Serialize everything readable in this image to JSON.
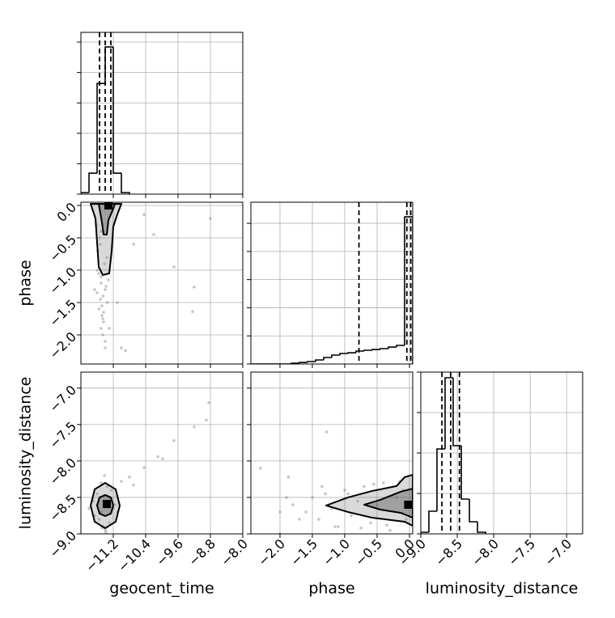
{
  "chart_data": {
    "type": "corner",
    "grid": true,
    "hist_color": "#000000",
    "point_color": "#808080",
    "contour_color": "#000000",
    "parameters": [
      {
        "label": "geocent_time",
        "lim": [
          -12.0,
          -8.0
        ],
        "ticks": [
          {
            "value": -11.2,
            "label": "−11.2"
          },
          {
            "value": -10.4,
            "label": "−10.4"
          },
          {
            "value": -9.6,
            "label": "−9.6"
          },
          {
            "value": -8.8,
            "label": "−8.8"
          },
          {
            "value": -8.0,
            "label": "−8.0"
          }
        ],
        "hist": {
          "bins": [
            -12.0,
            -11.8,
            -11.6,
            -11.4,
            -11.2,
            -11.0,
            -10.8
          ],
          "counts": [
            50,
            690,
            3640,
            4840,
            690,
            50
          ],
          "ylim": [
            0,
            5320
          ],
          "yticks": [
            0,
            1000,
            2000,
            3000,
            4000,
            5000
          ],
          "quantiles": [
            -11.54,
            -11.4,
            -11.26
          ]
        },
        "joint": []
      },
      {
        "label": "phase",
        "lim": [
          -2.45,
          0.05
        ],
        "ticks": [
          {
            "value": -2.0,
            "label": "−2.0"
          },
          {
            "value": -1.5,
            "label": "−1.5"
          },
          {
            "value": -1.0,
            "label": "−1.0"
          },
          {
            "value": -0.5,
            "label": "−0.5"
          },
          {
            "value": 0.0,
            "label": "0.0"
          }
        ],
        "hist": {
          "bins": [
            -2.45,
            -2.325,
            -2.2,
            -2.075,
            -1.95,
            -1.825,
            -1.7,
            -1.575,
            -1.45,
            -1.325,
            -1.2,
            -1.075,
            -0.95,
            -0.825,
            -0.7,
            -0.575,
            -0.45,
            -0.325,
            -0.2,
            -0.075,
            0.05
          ],
          "counts": [
            0,
            0,
            0,
            0,
            0,
            29,
            57,
            86,
            144,
            230,
            316,
            374,
            402,
            460,
            489,
            517,
            546,
            603,
            661,
            5230
          ],
          "ylim": [
            0,
            5750
          ],
          "yticks": [
            0,
            1000,
            2000,
            3000,
            4000,
            5000
          ],
          "quantiles": [
            -0.78,
            -0.04,
            0.02
          ]
        },
        "joint": [
          {
            "x": [
              -11.5,
              -11.4,
              -11.6,
              -11.45,
              -11.35,
              -11.55,
              -11.5,
              -11.42,
              -11.38,
              -11.6,
              -11.48,
              -11.52,
              -11.44,
              -11.36,
              -11.58,
              -11.5,
              -11.46,
              -11.4,
              -11.54,
              -11.32,
              -11.62,
              -11.48,
              -11.56,
              -11.44,
              -11.5,
              -11.4,
              -11.66,
              -11.3,
              -11.52,
              -11.46,
              -10.44,
              -9.7,
              -9.2,
              -10.2,
              -10.9,
              -8.8,
              -9.24,
              -11.1,
              -11.0,
              -10.7
            ],
            "y": [
              -1.2,
              -1.3,
              -1.0,
              -1.4,
              -1.5,
              -1.6,
              -1.1,
              -0.9,
              -1.25,
              -1.35,
              -1.7,
              -1.45,
              -1.8,
              -0.8,
              -0.7,
              -1.9,
              -2.0,
              -2.1,
              -0.5,
              -1.15,
              -0.3,
              -1.55,
              -1.05,
              -1.65,
              -0.4,
              -2.2,
              -1.3,
              -1.9,
              -0.6,
              -1.75,
              -0.14,
              -0.95,
              -1.26,
              -0.45,
              -2.24,
              -0.2,
              -1.64,
              -1.5,
              -2.2,
              -0.6
            ],
            "contours": [
              {
                "x": [
                  -11.76,
                  -11.64,
                  -11.6,
                  -11.56,
                  -11.46,
                  -11.3,
                  -11.24,
                  -11.2,
                  -11.1,
                  -11.0
                ],
                "y": [
                  0.025,
                  -0.2,
                  -0.575,
                  -0.95,
                  -1.075,
                  -1.05,
                  -0.7,
                  -0.325,
                  -0.1375,
                  0.025
                ]
              },
              {
                "x": [
                  -11.56,
                  -11.48,
                  -11.44,
                  -11.36,
                  -11.32,
                  -11.2,
                  -11.16
                ],
                "y": [
                  0.025,
                  -0.2625,
                  -0.45,
                  -0.45,
                  -0.225,
                  -0.05,
                  0.025
                ]
              }
            ],
            "peak": {
              "x": -11.32,
              "y": 0.0
            }
          }
        ]
      },
      {
        "label": "luminosity_distance",
        "lim": [
          -9.0,
          -6.78
        ],
        "ticks": [
          {
            "value": -9.0,
            "label": "−9.0"
          },
          {
            "value": -8.5,
            "label": "−8.5"
          },
          {
            "value": -8.0,
            "label": "−8.0"
          },
          {
            "value": -7.5,
            "label": "−7.5"
          },
          {
            "value": -7.0,
            "label": "−7.0"
          }
        ],
        "hist": {
          "bins": [
            -9.0,
            -8.889,
            -8.778,
            -8.667,
            -8.556,
            -8.444,
            -8.333,
            -8.222,
            -8.111
          ],
          "counts": [
            40,
            560,
            2100,
            3860,
            2180,
            860,
            300,
            40
          ],
          "ylim": [
            0,
            4000
          ],
          "yticks": [
            0,
            1000,
            2000,
            3000,
            4000
          ],
          "quantiles": [
            -8.71,
            -8.59,
            -8.47
          ]
        },
        "joint": [
          {
            "x": [
              -11.6,
              -11.5,
              -11.3,
              -11.2,
              -11.7,
              -11.45,
              -11.35,
              -11.55,
              -11.25,
              -11.4,
              -11.65,
              -11.15,
              -11.5,
              -11.3,
              -11.6,
              -11.42,
              -11.38,
              -11.8,
              -11.1,
              -11.48,
              -11.0,
              -10.8,
              -10.44,
              -10.1,
              -9.7,
              -9.2,
              -8.9,
              -8.84,
              -9.98,
              -10.7
            ],
            "y": [
              -8.6,
              -8.7,
              -8.5,
              -8.65,
              -8.55,
              -8.9,
              -8.35,
              -8.8,
              -8.4,
              -8.95,
              -8.75,
              -8.6,
              -8.3,
              -8.85,
              -8.45,
              -8.2,
              -8.98,
              -8.65,
              -8.7,
              -8.92,
              -8.28,
              -8.22,
              -8.09,
              -7.94,
              -7.72,
              -7.53,
              -7.44,
              -7.2,
              -7.97,
              -8.33
            ],
            "contours": [
              {
                "x": [
                  -11.76,
                  -11.66,
                  -11.4,
                  -11.14,
                  -11.04,
                  -11.14,
                  -11.4,
                  -11.66
                ],
                "y": [
                  -8.611,
                  -8.389,
                  -8.3,
                  -8.389,
                  -8.611,
                  -8.833,
                  -8.922,
                  -8.833
                ]
              },
              {
                "x": [
                  -11.6,
                  -11.54,
                  -11.4,
                  -11.26,
                  -11.2,
                  -11.26,
                  -11.4,
                  -11.54
                ],
                "y": [
                  -8.611,
                  -8.5,
                  -8.467,
                  -8.5,
                  -8.611,
                  -8.722,
                  -8.756,
                  -8.722
                ]
              }
            ],
            "peak": {
              "x": -11.36,
              "y": -8.59
            }
          },
          {
            "x": [
              -1.8,
              -1.6,
              -1.5,
              -1.4,
              -1.3,
              -1.2,
              -1.1,
              -1.0,
              -0.9,
              -0.8,
              -0.7,
              -0.6,
              -0.5,
              -0.4,
              -0.3,
              -0.2,
              -0.1,
              -0.05,
              -1.7,
              -1.35,
              -1.15,
              -0.95,
              -0.75,
              -0.55,
              -0.35,
              -0.15,
              -2.0,
              -1.9,
              -1.28,
              -2.3,
              -1.87,
              -2.0
            ],
            "y": [
              -8.6,
              -8.7,
              -8.5,
              -8.8,
              -8.45,
              -8.65,
              -8.9,
              -8.4,
              -8.75,
              -8.55,
              -8.35,
              -8.85,
              -8.6,
              -8.3,
              -8.95,
              -8.5,
              -8.4,
              -8.8,
              -8.8,
              -8.35,
              -8.9,
              -8.45,
              -8.92,
              -8.32,
              -8.88,
              -8.28,
              -8.7,
              -8.5,
              -7.6,
              -8.1,
              -8.22,
              -9.0
            ],
            "contours": [
              {
                "x": [
                  -1.2875,
                  -0.95,
                  -0.575,
                  -0.2,
                  -0.075,
                  0.05,
                  0.05,
                  -0.075,
                  -0.575,
                  -0.95
                ],
                "y": [
                  -8.611,
                  -8.5,
                  -8.411,
                  -8.344,
                  -8.222,
                  -8.189,
                  -8.889,
                  -8.833,
                  -8.778,
                  -8.7
                ]
              },
              {
                "x": [
                  -0.7,
                  -0.45,
                  -0.1375,
                  0.05,
                  0.05,
                  -0.1375,
                  -0.45
                ],
                "y": [
                  -8.6,
                  -8.533,
                  -8.422,
                  -8.378,
                  -8.778,
                  -8.711,
                  -8.667
                ]
              }
            ],
            "peak": {
              "x": -0.02,
              "y": -8.6
            }
          }
        ]
      }
    ]
  }
}
